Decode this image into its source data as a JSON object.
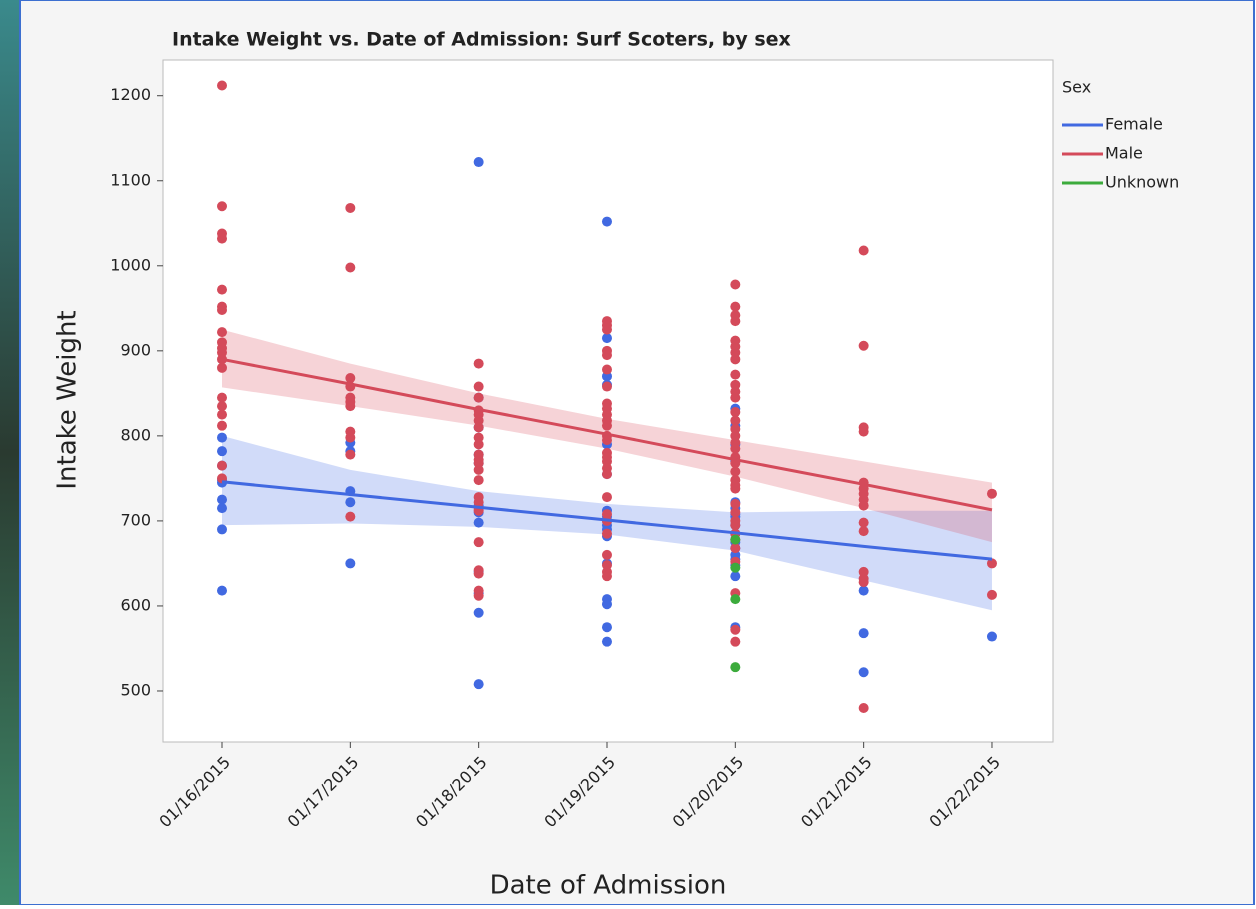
{
  "chart_data": {
    "type": "scatter",
    "title": "Intake Weight vs. Date of Admission: Surf Scoters, by sex",
    "x_label": "Date of Admission",
    "y_label": "Intake Weight",
    "legend_title": "Sex",
    "legend": "right",
    "categories": [
      "01/16/2015",
      "01/17/2015",
      "01/18/2015",
      "01/19/2015",
      "01/20/2015",
      "01/21/2015",
      "01/22/2015"
    ],
    "ylim": [
      440,
      1242
    ],
    "yticks": [
      500,
      600,
      700,
      800,
      900,
      1000,
      1100,
      1200
    ],
    "series": [
      {
        "name": "Female",
        "color": "#4169e1",
        "values": [
          [
            798,
            782,
            765,
            748,
            745,
            725,
            715,
            690,
            618
          ],
          [
            792,
            782,
            735,
            722,
            650
          ],
          [
            1122,
            845,
            810,
            778,
            768,
            718,
            710,
            698,
            640,
            615,
            592,
            508
          ],
          [
            1052,
            915,
            870,
            860,
            790,
            755,
            712,
            705,
            700,
            695,
            690,
            682,
            650,
            608,
            602,
            575,
            558
          ],
          [
            832,
            812,
            790,
            770,
            722,
            715,
            708,
            705,
            695,
            685,
            675,
            668,
            660,
            655,
            648,
            635,
            575
          ],
          [
            618,
            568,
            522
          ],
          [
            564
          ]
        ],
        "fit": [
          746,
          731,
          716,
          701,
          686,
          670,
          655
        ],
        "fit_lower": [
          695,
          697,
          693,
          684,
          665,
          630,
          595
        ],
        "fit_upper": [
          800,
          760,
          735,
          720,
          710,
          712,
          712
        ]
      },
      {
        "name": "Male",
        "color": "#d44a5a",
        "values": [
          [
            1212,
            1070,
            1038,
            1032,
            972,
            952,
            948,
            922,
            910,
            903,
            898,
            890,
            880,
            845,
            835,
            825,
            812,
            765,
            750
          ],
          [
            1068,
            998,
            868,
            858,
            845,
            840,
            835,
            805,
            798,
            778,
            705
          ],
          [
            885,
            858,
            845,
            830,
            825,
            818,
            810,
            798,
            790,
            778,
            772,
            768,
            760,
            748,
            728,
            722,
            715,
            712,
            675,
            642,
            638,
            618,
            612
          ],
          [
            935,
            930,
            925,
            900,
            895,
            878,
            858,
            838,
            832,
            825,
            818,
            812,
            800,
            795,
            780,
            775,
            770,
            762,
            755,
            728,
            708,
            700,
            685,
            660,
            648,
            640,
            635
          ],
          [
            978,
            952,
            942,
            935,
            912,
            905,
            898,
            890,
            872,
            860,
            852,
            845,
            828,
            818,
            808,
            800,
            792,
            785,
            775,
            768,
            758,
            748,
            742,
            738,
            720,
            710,
            700,
            695,
            685,
            678,
            668,
            652,
            615,
            572,
            558
          ],
          [
            1018,
            906,
            810,
            805,
            745,
            738,
            732,
            725,
            718,
            698,
            688,
            640,
            632,
            628,
            480
          ],
          [
            732,
            650,
            613
          ]
        ],
        "fit": [
          890,
          861,
          831,
          802,
          772,
          743,
          713
        ],
        "fit_lower": [
          857,
          835,
          812,
          785,
          752,
          715,
          675
        ],
        "fit_upper": [
          925,
          885,
          850,
          820,
          795,
          770,
          745
        ]
      },
      {
        "name": "Unknown",
        "color": "#3cab3c",
        "values": [
          [],
          [],
          [],
          [],
          [
            678,
            645,
            608,
            528
          ],
          [],
          []
        ]
      }
    ]
  }
}
